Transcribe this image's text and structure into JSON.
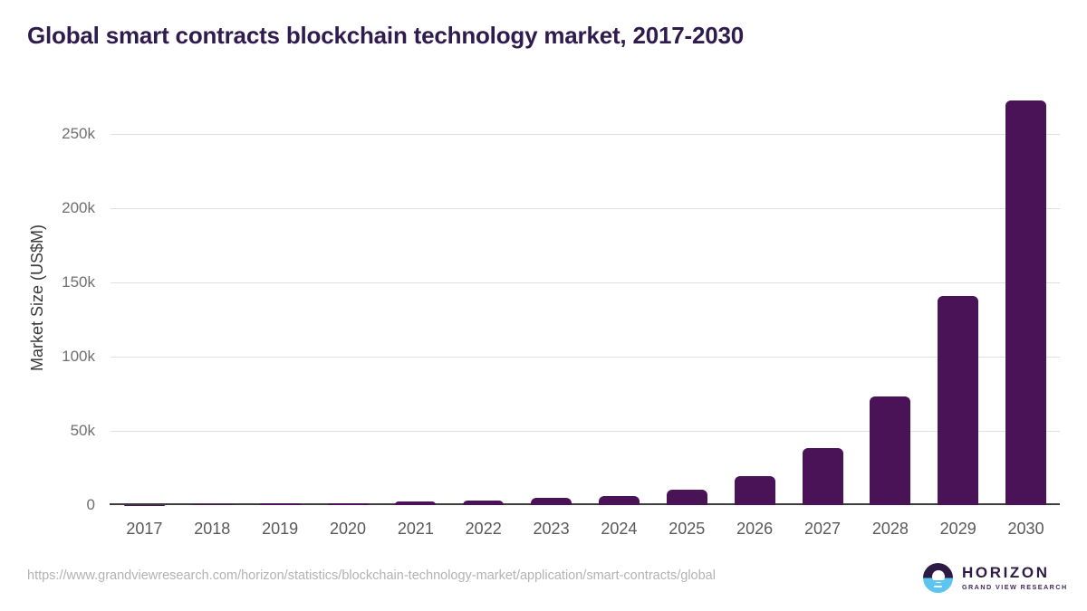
{
  "page": {
    "title": "Global smart contracts blockchain technology market, 2017-2030"
  },
  "chart_data": {
    "type": "bar",
    "title": "Global smart contracts blockchain technology market, 2017-2030",
    "xlabel": "",
    "ylabel": "Market Size (US$M)",
    "categories": [
      "2017",
      "2018",
      "2019",
      "2020",
      "2021",
      "2022",
      "2023",
      "2024",
      "2025",
      "2026",
      "2027",
      "2028",
      "2029",
      "2030"
    ],
    "values": [
      200,
      400,
      1100,
      1500,
      2300,
      3200,
      4600,
      5800,
      10200,
      19800,
      38400,
      73100,
      140600,
      272300
    ],
    "unit": "US$M",
    "ylim": [
      0,
      279000
    ],
    "yticks": [
      {
        "value": 0,
        "label": "0"
      },
      {
        "value": 50000,
        "label": "50k"
      },
      {
        "value": 100000,
        "label": "100k"
      },
      {
        "value": 150000,
        "label": "150k"
      },
      {
        "value": 200000,
        "label": "200k"
      },
      {
        "value": 250000,
        "label": "250k"
      }
    ],
    "grid": "horizontal",
    "legend": "none",
    "bar_color": "#4a1257"
  },
  "footer": {
    "source_url": "https://www.grandviewresearch.com/horizon/statistics/blockchain-technology-market/application/smart-contracts/global",
    "logo": {
      "brand": "HORIZON",
      "subtitle": "GRAND VIEW RESEARCH",
      "mark_icon": "horizon-sunset-icon"
    }
  },
  "colors": {
    "bar": "#4a1257",
    "title_text": "#2f1b4d",
    "x_tick_text": "#58595b",
    "y_tick_text": "#6f6f6f",
    "gridline": "#e0e0e0",
    "axis_line": "#3d3d3d",
    "source_text": "#b3b3b3",
    "logo_purple": "#2e1b45",
    "logo_blue": "#5bc5f0"
  }
}
